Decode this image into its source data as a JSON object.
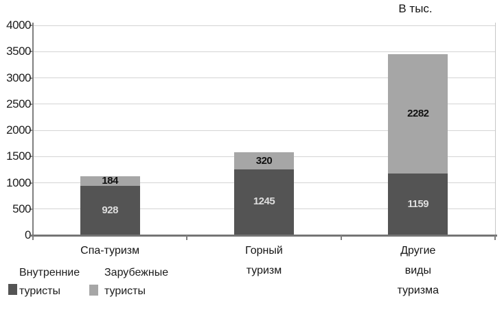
{
  "chart_data": {
    "type": "bar",
    "stacked": true,
    "unit_label": "В тыс.",
    "title": "",
    "xlabel": "",
    "ylabel": "",
    "ylim": [
      0,
      4000
    ],
    "y_ticks": [
      0,
      500,
      1000,
      1500,
      2000,
      2500,
      3000,
      3500,
      4000
    ],
    "grid": true,
    "legend_position": "bottom-left",
    "categories": [
      {
        "label": "Спа-туризм",
        "lines": [
          "Спа-туризм"
        ]
      },
      {
        "label": "Горный туризм",
        "lines": [
          "Горный",
          "туризм"
        ]
      },
      {
        "label": "Другие виды туризма",
        "lines": [
          "Другие",
          "виды",
          "туризма"
        ]
      }
    ],
    "series": [
      {
        "name": "Внутренние туристы",
        "color": "#545454",
        "label_color": "#dedede",
        "values": [
          928,
          1245,
          1159
        ]
      },
      {
        "name": "Зарубежные туристы",
        "color": "#a6a6a6",
        "label_color": "#111111",
        "values": [
          184,
          320,
          2282
        ]
      }
    ]
  },
  "legend": {
    "items": [
      {
        "lines": [
          "Внутренние",
          "туристы"
        ]
      },
      {
        "lines": [
          "Зарубежные",
          "туристы"
        ]
      }
    ]
  }
}
